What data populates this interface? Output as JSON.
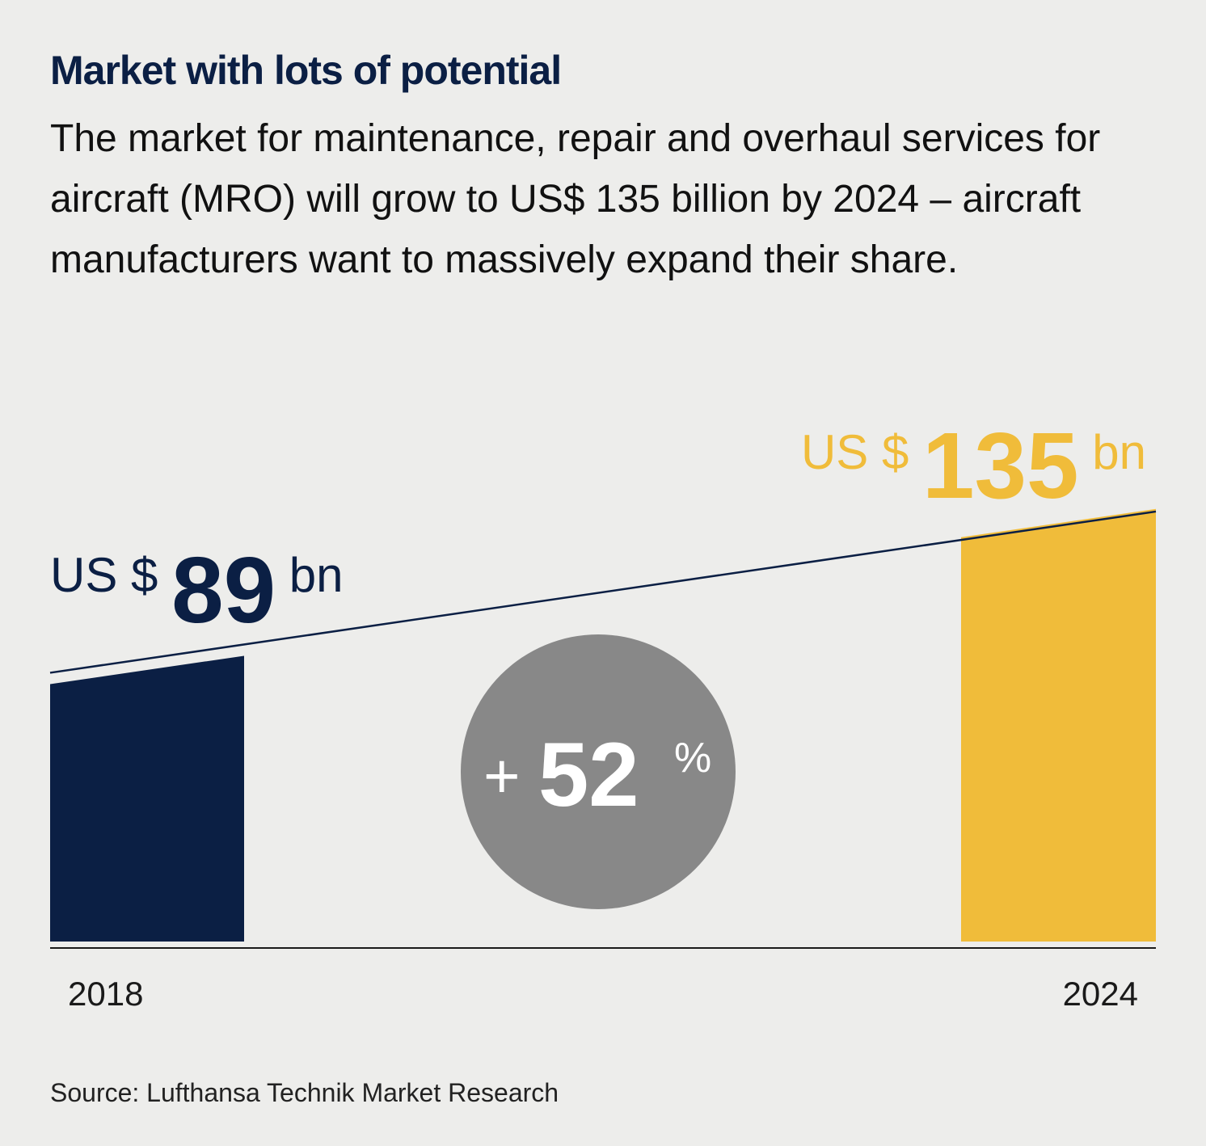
{
  "title": "Market with lots of potential",
  "subtitle": "The market for maintenance, repair and overhaul services for aircraft (MRO) will grow to US$ 135 billion by 2024 – aircraft manufacturers want to massively expand their share.",
  "source": "Source: Lufthansa Technik Market Research",
  "colors": {
    "background": "#ededeb",
    "navy": "#0b1f44",
    "gold": "#f0bc3a",
    "badge": "#888888"
  },
  "chart_data": {
    "type": "bar",
    "categories": [
      "2018",
      "2024"
    ],
    "values": [
      89,
      135
    ],
    "unit": "US$ bn",
    "bar_labels": [
      {
        "prefix": "US $",
        "value": "89",
        "suffix": "bn"
      },
      {
        "prefix": "US $",
        "value": "135",
        "suffix": "bn"
      }
    ],
    "growth_badge": {
      "sign": "+",
      "value": "52",
      "unit": "%"
    },
    "trend_line": true,
    "grid": false,
    "legend": "none"
  }
}
